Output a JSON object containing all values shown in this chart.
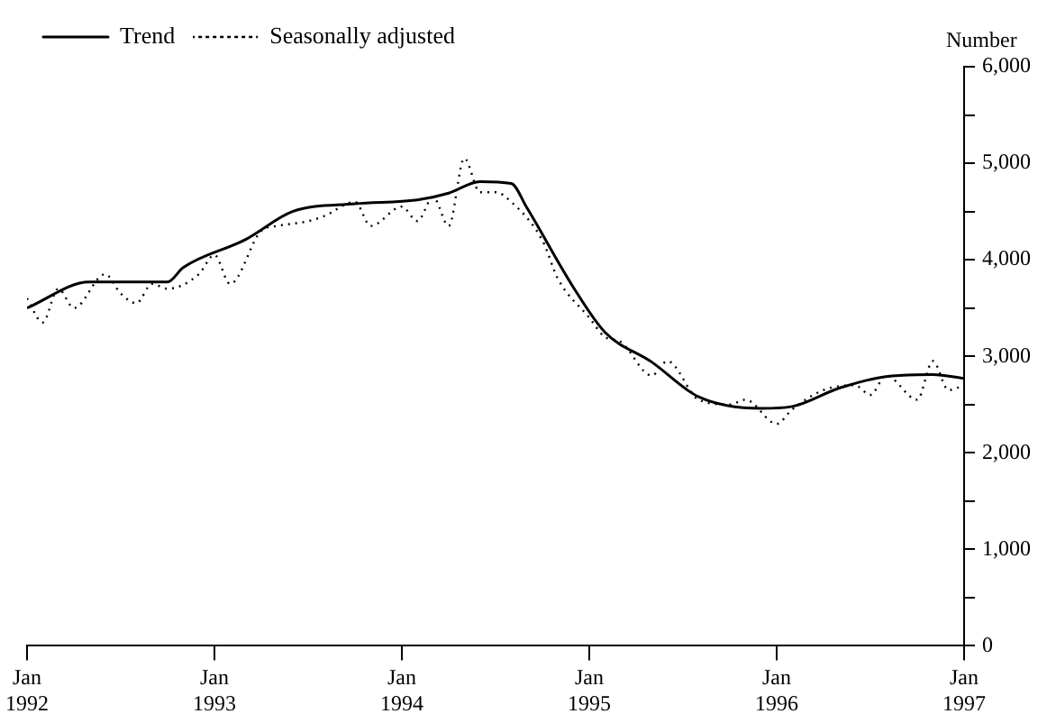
{
  "chart_data": {
    "type": "line",
    "ylabel": "Number",
    "xlim": [
      "1992-01",
      "1997-01"
    ],
    "xticks": [
      {
        "value": "1992-01",
        "label": "Jan 1992"
      },
      {
        "value": "1993-01",
        "label": "Jan 1993"
      },
      {
        "value": "1994-01",
        "label": "Jan 1994"
      },
      {
        "value": "1995-01",
        "label": "Jan 1995"
      },
      {
        "value": "1996-01",
        "label": "Jan 1996"
      },
      {
        "value": "1997-01",
        "label": "Jan 1997"
      }
    ],
    "ylim": [
      0,
      6000
    ],
    "yticks": [
      0,
      {
        "value": 500,
        "label": null
      },
      {
        "value": 1000,
        "label": "1,000"
      },
      {
        "value": 1500,
        "label": null
      },
      {
        "value": 2000,
        "label": "2,000"
      },
      {
        "value": 2500,
        "label": null
      },
      {
        "value": 3000,
        "label": "3,000"
      },
      {
        "value": 3500,
        "label": null
      },
      {
        "value": 4000,
        "label": "4,000"
      },
      {
        "value": 4500,
        "label": null
      },
      {
        "value": 5000,
        "label": "5,000"
      },
      {
        "value": 5500,
        "label": null
      },
      {
        "value": 6000,
        "label": "6,000"
      }
    ],
    "grid": false,
    "legend": "top left",
    "marker": "none",
    "series": [
      {
        "name": "Trend",
        "color": "#000000",
        "line_style": "solid",
        "x": [
          "1992-01",
          "1992-05",
          "1992-10",
          "1992-11",
          "1993-03",
          "1993-06",
          "1993-10",
          "1994-02",
          "1994-04",
          "1994-06",
          "1994-08",
          "1994-09",
          "1994-12",
          "1995-02",
          "1995-05",
          "1995-08",
          "1995-12",
          "1996-02",
          "1996-05",
          "1996-08",
          "1996-11",
          "1997-01"
        ],
        "values": [
          3500,
          3770,
          3770,
          3920,
          4210,
          4500,
          4580,
          4620,
          4690,
          4810,
          4790,
          4540,
          3710,
          3250,
          2940,
          2580,
          2460,
          2480,
          2670,
          2790,
          2810,
          2770
        ]
      },
      {
        "name": "Seasonally adjusted",
        "color": "#000000",
        "line_style": "dotted",
        "x": [
          "1992-01",
          "1992-02",
          "1992-03",
          "1992-04",
          "1992-06",
          "1992-07",
          "1992-08",
          "1992-09",
          "1992-10",
          "1992-12",
          "1993-01",
          "1993-02",
          "1993-04",
          "1993-05",
          "1993-07",
          "1993-08",
          "1993-10",
          "1993-11",
          "1994-01",
          "1994-02",
          "1994-03",
          "1994-04",
          "1994-05",
          "1994-06",
          "1994-07",
          "1994-08",
          "1994-10",
          "1994-11",
          "1995-01",
          "1995-02",
          "1995-03",
          "1995-05",
          "1995-06",
          "1995-08",
          "1995-10",
          "1995-11",
          "1996-01",
          "1996-02",
          "1996-04",
          "1996-06",
          "1996-07",
          "1996-08",
          "1996-10",
          "1996-11",
          "1996-12",
          "1997-01"
        ],
        "values": [
          3600,
          3350,
          3700,
          3500,
          3850,
          3650,
          3550,
          3750,
          3700,
          3850,
          4050,
          3750,
          4300,
          4350,
          4400,
          4450,
          4600,
          4350,
          4550,
          4400,
          4650,
          4350,
          5050,
          4700,
          4700,
          4600,
          4200,
          3800,
          3400,
          3200,
          3150,
          2800,
          2950,
          2550,
          2500,
          2550,
          2300,
          2450,
          2650,
          2700,
          2600,
          2800,
          2550,
          2950,
          2650,
          2700
        ]
      }
    ]
  }
}
